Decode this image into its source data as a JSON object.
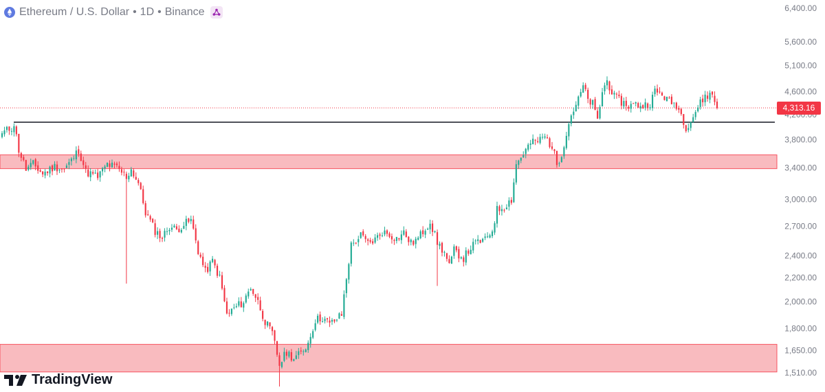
{
  "header": {
    "symbol": "Ethereum / U.S. Dollar",
    "interval": "1D",
    "exchange": "Binance",
    "separator": "•",
    "symbol_icon": "ethereum-icon",
    "share_icon": "share-icon"
  },
  "branding": {
    "name": "TradingView",
    "logo_icon": "tradingview-logo-icon"
  },
  "colors": {
    "up": "#22ab94",
    "down": "#f23645",
    "zone_fill": "#f8b4b8",
    "zone_stroke": "#f7525f",
    "level_line": "#131722",
    "price_line": "#f23645",
    "axis_text": "#787b86"
  },
  "last_price_label": "4,313.16",
  "chart_data": {
    "type": "candlestick",
    "title": "Ethereum / U.S. Dollar • 1D • Binance",
    "y_scale": "log",
    "y_ticks": [
      {
        "value": 6400,
        "label": "6,400.00"
      },
      {
        "value": 5600,
        "label": "5,600.00"
      },
      {
        "value": 5100,
        "label": "5,100.00"
      },
      {
        "value": 4600,
        "label": "4,600.00"
      },
      {
        "value": 4200,
        "label": "4,200.00"
      },
      {
        "value": 3800,
        "label": "3,800.00"
      },
      {
        "value": 3400,
        "label": "3,400.00"
      },
      {
        "value": 3000,
        "label": "3,000.00"
      },
      {
        "value": 2700,
        "label": "2,700.00"
      },
      {
        "value": 2400,
        "label": "2,400.00"
      },
      {
        "value": 2200,
        "label": "2,200.00"
      },
      {
        "value": 2000,
        "label": "2,000.00"
      },
      {
        "value": 1800,
        "label": "1,800.00"
      },
      {
        "value": 1650,
        "label": "1,650.00"
      },
      {
        "value": 1510,
        "label": "1,510.00"
      }
    ],
    "last_price": 4313.16,
    "horizontal_levels": [
      {
        "price": 4075
      }
    ],
    "zones": [
      {
        "low": 3390,
        "high": 3580
      },
      {
        "low": 1515,
        "high": 1690
      }
    ],
    "close_anchors": [
      [
        0,
        3900
      ],
      [
        4,
        3990
      ],
      [
        5,
        4050
      ],
      [
        7,
        3650
      ],
      [
        10,
        3380
      ],
      [
        13,
        3450
      ],
      [
        17,
        3320
      ],
      [
        22,
        3420
      ],
      [
        26,
        3380
      ],
      [
        29,
        3500
      ],
      [
        32,
        3650
      ],
      [
        35,
        3350
      ],
      [
        40,
        3280
      ],
      [
        44,
        3450
      ],
      [
        48,
        3400
      ],
      [
        52,
        3280
      ],
      [
        54,
        3380
      ],
      [
        57,
        3200
      ],
      [
        60,
        2850
      ],
      [
        64,
        2650
      ],
      [
        67,
        2580
      ],
      [
        70,
        2700
      ],
      [
        73,
        2660
      ],
      [
        76,
        2720
      ],
      [
        79,
        2760
      ],
      [
        82,
        2450
      ],
      [
        85,
        2250
      ],
      [
        88,
        2350
      ],
      [
        91,
        2200
      ],
      [
        94,
        1900
      ],
      [
        97,
        1950
      ],
      [
        101,
        2000
      ],
      [
        104,
        2120
      ],
      [
        107,
        2000
      ],
      [
        110,
        1850
      ],
      [
        113,
        1760
      ],
      [
        116,
        1560
      ],
      [
        119,
        1640
      ],
      [
        122,
        1600
      ],
      [
        125,
        1630
      ],
      [
        128,
        1700
      ],
      [
        131,
        1860
      ],
      [
        134,
        1880
      ],
      [
        137,
        1830
      ],
      [
        140,
        1870
      ],
      [
        142,
        1900
      ],
      [
        144,
        2200
      ],
      [
        146,
        2500
      ],
      [
        150,
        2600
      ],
      [
        153,
        2520
      ],
      [
        156,
        2560
      ],
      [
        159,
        2640
      ],
      [
        162,
        2610
      ],
      [
        165,
        2570
      ],
      [
        168,
        2630
      ],
      [
        171,
        2520
      ],
      [
        174,
        2570
      ],
      [
        177,
        2680
      ],
      [
        179,
        2750
      ],
      [
        182,
        2530
      ],
      [
        185,
        2430
      ],
      [
        187,
        2300
      ],
      [
        189,
        2450
      ],
      [
        193,
        2380
      ],
      [
        196,
        2480
      ],
      [
        199,
        2540
      ],
      [
        202,
        2550
      ],
      [
        205,
        2660
      ],
      [
        207,
        2880
      ],
      [
        210,
        2920
      ],
      [
        213,
        3000
      ],
      [
        215,
        3450
      ],
      [
        218,
        3600
      ],
      [
        221,
        3750
      ],
      [
        224,
        3780
      ],
      [
        227,
        3850
      ],
      [
        230,
        3700
      ],
      [
        232,
        3450
      ],
      [
        234,
        3600
      ],
      [
        236,
        3900
      ],
      [
        238,
        4200
      ],
      [
        241,
        4450
      ],
      [
        243,
        4700
      ],
      [
        245,
        4450
      ],
      [
        247,
        4380
      ],
      [
        249,
        4100
      ],
      [
        251,
        4600
      ],
      [
        253,
        4800
      ],
      [
        256,
        4500
      ],
      [
        259,
        4420
      ],
      [
        262,
        4350
      ],
      [
        265,
        4370
      ],
      [
        268,
        4350
      ],
      [
        271,
        4400
      ],
      [
        273,
        4600
      ],
      [
        276,
        4550
      ],
      [
        279,
        4420
      ],
      [
        282,
        4370
      ],
      [
        284,
        4200
      ],
      [
        286,
        4000
      ],
      [
        288,
        4100
      ],
      [
        291,
        4330
      ],
      [
        294,
        4520
      ],
      [
        297,
        4550
      ],
      [
        299,
        4313
      ]
    ]
  }
}
